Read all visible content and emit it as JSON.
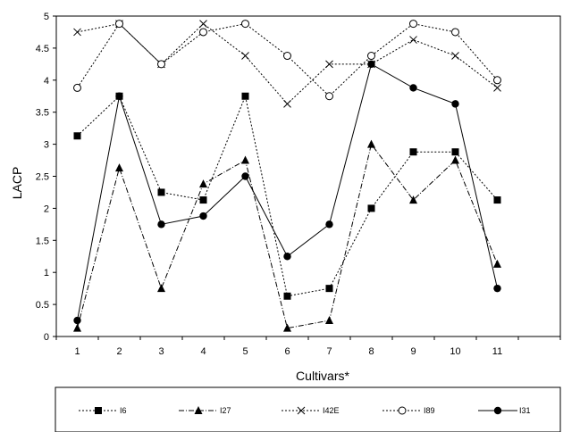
{
  "chart_data": {
    "type": "line",
    "title": "",
    "xlabel": "Cultivars*",
    "ylabel": "LACP",
    "x": [
      1,
      2,
      3,
      4,
      5,
      6,
      7,
      8,
      9,
      10,
      11
    ],
    "xlim": [
      0.5,
      12.5
    ],
    "ylim": [
      0,
      5
    ],
    "yticks": [
      0,
      0.5,
      1,
      1.5,
      2,
      2.5,
      3,
      3.5,
      4,
      4.5,
      5
    ],
    "grid": false,
    "legend_position": "bottom",
    "series": [
      {
        "name": "I6",
        "marker": "square",
        "dash": "dotted",
        "values": [
          3.13,
          3.75,
          2.25,
          2.13,
          3.75,
          0.63,
          0.75,
          2.0,
          2.88,
          2.88,
          2.13
        ]
      },
      {
        "name": "I27",
        "marker": "triangle",
        "dash": "dashdot",
        "values": [
          0.13,
          2.63,
          0.75,
          2.38,
          2.75,
          0.13,
          0.25,
          3.0,
          2.13,
          2.75,
          1.13
        ]
      },
      {
        "name": "I42E",
        "marker": "x",
        "dash": "dotted",
        "values": [
          4.75,
          4.88,
          4.25,
          4.88,
          4.38,
          3.63,
          4.25,
          4.25,
          4.63,
          4.38,
          3.88
        ]
      },
      {
        "name": "I89",
        "marker": "circle-open",
        "dash": "dotted",
        "values": [
          3.88,
          4.88,
          4.25,
          4.75,
          4.88,
          4.38,
          3.75,
          4.38,
          4.88,
          4.75,
          4.0
        ]
      },
      {
        "name": "I31",
        "marker": "circle-filled",
        "dash": "solid",
        "values": [
          0.25,
          3.75,
          1.75,
          1.88,
          2.5,
          1.25,
          1.75,
          4.25,
          3.88,
          3.63,
          0.75
        ]
      }
    ]
  }
}
